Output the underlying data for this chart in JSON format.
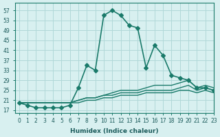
{
  "xlabel": "Humidex (Indice chaleur)",
  "ylabel": "",
  "bg_color": "#d8f0f0",
  "grid_color": "#b0d8d8",
  "line_color": "#1a7a6a",
  "xlim": [
    0,
    23
  ],
  "ylim": [
    16,
    60
  ],
  "yticks": [
    17,
    21,
    25,
    29,
    33,
    37,
    41,
    45,
    49,
    53,
    57
  ],
  "xticks": [
    0,
    1,
    2,
    3,
    4,
    5,
    6,
    7,
    8,
    9,
    10,
    11,
    12,
    13,
    14,
    15,
    16,
    17,
    18,
    19,
    20,
    21,
    22,
    23
  ],
  "series": [
    {
      "x": [
        0,
        1,
        2,
        3,
        4,
        5,
        6,
        7,
        8,
        9,
        10,
        11,
        12,
        13,
        14,
        15,
        16,
        17,
        18,
        19,
        20,
        21,
        22,
        23
      ],
      "y": [
        20,
        19,
        18,
        18,
        18,
        18,
        19,
        26,
        35,
        33,
        55,
        57,
        55,
        51,
        50,
        34,
        43,
        39,
        31,
        30,
        29,
        26,
        26,
        25
      ],
      "marker": "D",
      "markersize": 3,
      "linewidth": 1.2
    },
    {
      "x": [
        0,
        1,
        2,
        3,
        4,
        5,
        6,
        7,
        8,
        9,
        10,
        11,
        12,
        13,
        14,
        15,
        16,
        17,
        18,
        19,
        20,
        21,
        22,
        23
      ],
      "y": [
        20,
        20,
        20,
        20,
        20,
        20,
        20,
        21,
        22,
        22,
        23,
        24,
        25,
        25,
        25,
        26,
        27,
        27,
        27,
        28,
        29,
        26,
        27,
        26
      ],
      "marker": null,
      "markersize": 0,
      "linewidth": 1.0
    },
    {
      "x": [
        0,
        1,
        2,
        3,
        4,
        5,
        6,
        7,
        8,
        9,
        10,
        11,
        12,
        13,
        14,
        15,
        16,
        17,
        18,
        19,
        20,
        21,
        22,
        23
      ],
      "y": [
        20,
        20,
        20,
        20,
        20,
        20,
        20,
        21,
        22,
        22,
        23,
        23,
        24,
        24,
        24,
        25,
        25,
        25,
        25,
        26,
        27,
        25,
        26,
        25
      ],
      "marker": null,
      "markersize": 0,
      "linewidth": 1.0
    },
    {
      "x": [
        0,
        1,
        2,
        3,
        4,
        5,
        6,
        7,
        8,
        9,
        10,
        11,
        12,
        13,
        14,
        15,
        16,
        17,
        18,
        19,
        20,
        21,
        22,
        23
      ],
      "y": [
        20,
        20,
        20,
        20,
        20,
        20,
        20,
        20,
        21,
        21,
        22,
        22,
        23,
        23,
        23,
        24,
        24,
        24,
        24,
        25,
        25,
        24,
        25,
        24
      ],
      "marker": null,
      "markersize": 0,
      "linewidth": 1.0
    }
  ]
}
